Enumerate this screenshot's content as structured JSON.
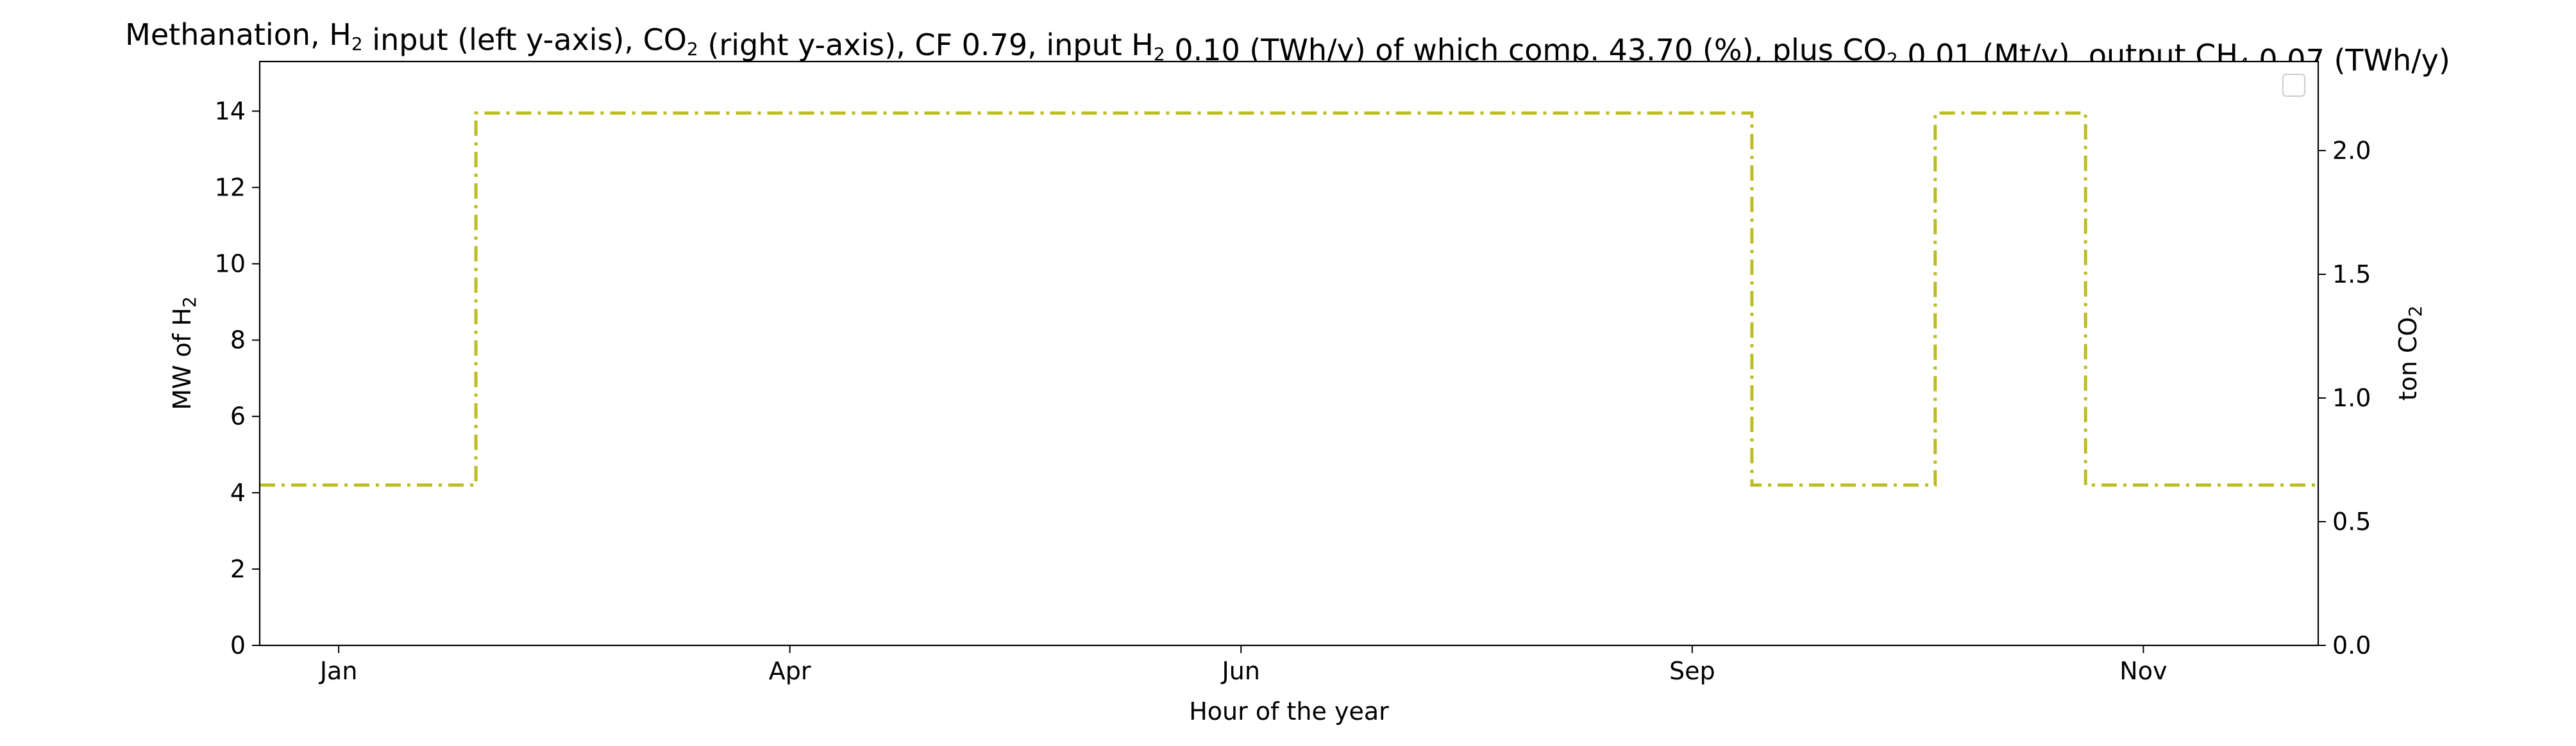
{
  "chart_data": {
    "type": "line",
    "title": {
      "segments": [
        {
          "t": "Methanation, H"
        },
        {
          "t": "2",
          "sub": true
        },
        {
          "t": " input (left y-axis), CO"
        },
        {
          "t": "2",
          "sub": true
        },
        {
          "t": " (right y-axis), CF 0.79, input H"
        },
        {
          "t": "2",
          "sub": true
        },
        {
          "t": " 0.10 (TWh/y) of which comp. 43.70 (%), plus CO"
        },
        {
          "t": "2",
          "sub": true
        },
        {
          "t": " 0.01 (Mt/y), output CH"
        },
        {
          "t": "4",
          "sub": true
        },
        {
          "t": " 0.07 (TWh/y)"
        }
      ]
    },
    "xlabel": "Hour of the year",
    "ylabel_left": {
      "segments": [
        {
          "t": "MW of H"
        },
        {
          "t": "2",
          "sub": true
        }
      ]
    },
    "ylabel_right": {
      "segments": [
        {
          "t": "ton CO"
        },
        {
          "t": "2",
          "sub": true
        }
      ]
    },
    "xlim": [
      0,
      8760
    ],
    "ylim_left": [
      0,
      15.3
    ],
    "ylim_right": [
      0,
      2.36
    ],
    "x_ticks": [
      {
        "label": "Jan",
        "x": 336
      },
      {
        "label": "Apr",
        "x": 2256
      },
      {
        "label": "Jun",
        "x": 4176
      },
      {
        "label": "Sep",
        "x": 6096
      },
      {
        "label": "Nov",
        "x": 8016
      }
    ],
    "y_ticks_left": [
      0,
      2,
      4,
      6,
      8,
      10,
      12,
      14
    ],
    "y_ticks_left_labels": [
      "0",
      "2",
      "4",
      "6",
      "8",
      "10",
      "12",
      "14"
    ],
    "y_ticks_right": [
      0.0,
      0.5,
      1.0,
      1.5,
      2.0
    ],
    "y_ticks_right_labels": [
      "0.0",
      "0.5",
      "1.0",
      "1.5",
      "2.0"
    ],
    "grid": false,
    "legend": {
      "placement": "upper right",
      "entries": []
    },
    "series": [
      {
        "axis": "left",
        "color": "#bcbd22",
        "linestyle": "dash-dot",
        "drawstyle": "steps",
        "x": [
          0,
          920,
          920,
          6350,
          6350,
          7130,
          7130,
          7770,
          7770,
          8760
        ],
        "y": [
          4.2,
          4.2,
          13.95,
          13.95,
          4.2,
          4.2,
          13.95,
          13.95,
          4.2,
          4.2
        ]
      }
    ]
  }
}
